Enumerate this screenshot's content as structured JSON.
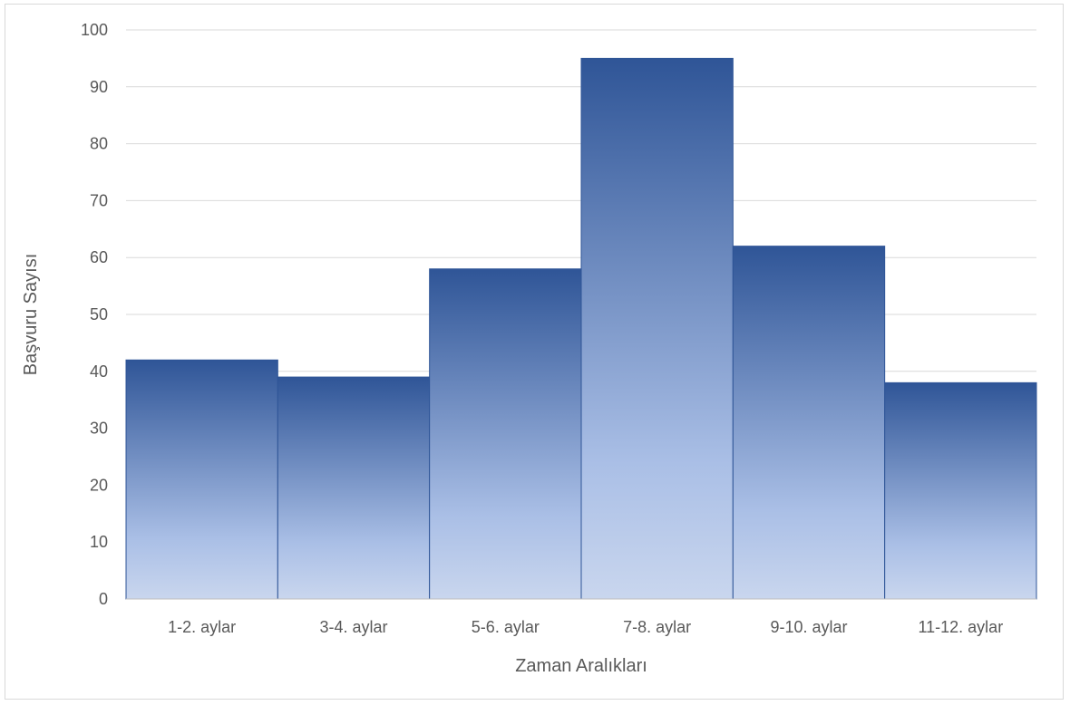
{
  "chart_data": {
    "type": "bar",
    "title": "",
    "xlabel": "Zaman Aralıkları",
    "ylabel": "Başvuru Sayısı",
    "categories": [
      "1-2. aylar",
      "3-4. aylar",
      "5-6. aylar",
      "7-8. aylar",
      "9-10. aylar",
      "11-12. aylar"
    ],
    "values": [
      42,
      39,
      58,
      95,
      62,
      38
    ],
    "ylim": [
      0,
      100
    ],
    "yticks": [
      0,
      10,
      20,
      30,
      40,
      50,
      60,
      70,
      80,
      90,
      100
    ],
    "grid": true,
    "legend": "none",
    "colors": {
      "bar_top": "#2f5597",
      "bar_mid": "#aabfe6",
      "bar_bottom": "#c9d6ee",
      "bar_border": "#2f5597",
      "gridline": "#d9d9d9",
      "axis_line": "#bfbfbf"
    }
  }
}
